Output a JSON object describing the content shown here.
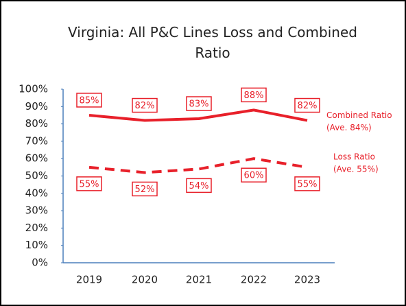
{
  "chart_data": {
    "type": "line",
    "title": "Virginia: All P&C Lines Loss and Combined Ratio",
    "categories": [
      "2019",
      "2020",
      "2021",
      "2022",
      "2023"
    ],
    "series": [
      {
        "name": "Combined Ratio",
        "note": "(Ave. 84%)",
        "color": "#e8202a",
        "dash": false,
        "values": [
          85,
          82,
          83,
          88,
          82
        ],
        "value_labels": [
          "85%",
          "82%",
          "83%",
          "88%",
          "82%"
        ]
      },
      {
        "name": "Loss Ratio",
        "note": "(Ave. 55%)",
        "color": "#e8202a",
        "dash": true,
        "values": [
          55,
          52,
          54,
          60,
          55
        ],
        "value_labels": [
          "55%",
          "52%",
          "54%",
          "60%",
          "55%"
        ]
      }
    ],
    "ylim": [
      0,
      100
    ],
    "yticks": [
      {
        "value": 0,
        "label": "0%"
      },
      {
        "value": 10,
        "label": "10%"
      },
      {
        "value": 20,
        "label": "20%"
      },
      {
        "value": 30,
        "label": "30%"
      },
      {
        "value": 40,
        "label": "40%"
      },
      {
        "value": 50,
        "label": "50%"
      },
      {
        "value": 60,
        "label": "60%"
      },
      {
        "value": 70,
        "label": "70%"
      },
      {
        "value": 80,
        "label": "80%"
      },
      {
        "value": 90,
        "label": "90%"
      },
      {
        "value": 100,
        "label": "100%"
      }
    ],
    "grid": false
  }
}
